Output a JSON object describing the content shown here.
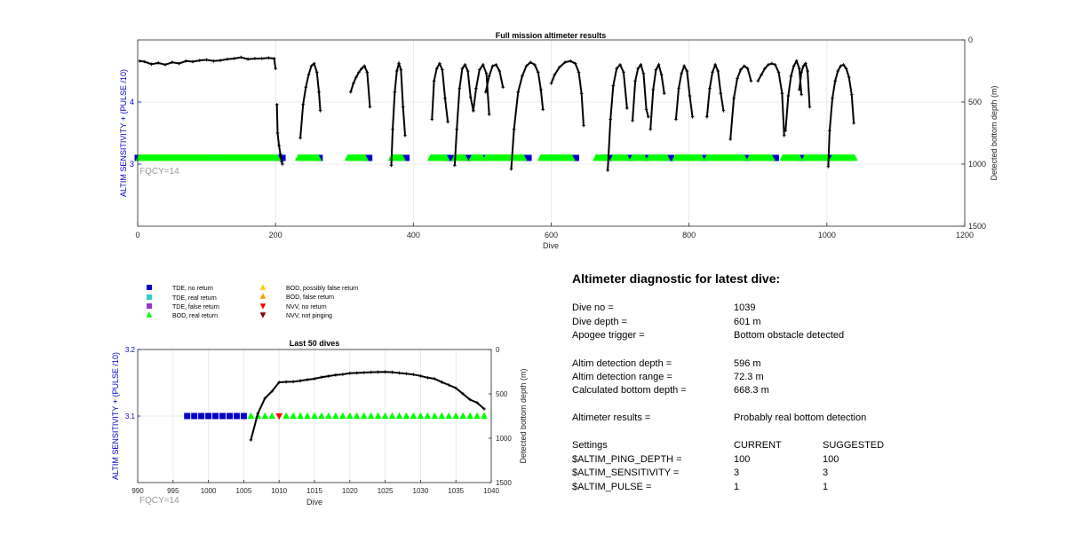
{
  "colors": {
    "tde_no_return": "#0000CC",
    "tde_real_return": "#33CCCC",
    "tde_false_return": "#9933CC",
    "bod_real_return": "#00FF00",
    "bod_possibly_false_return": "#FFCC00",
    "bod_false_return": "#FF9900",
    "nvv_no_return": "#FF0000",
    "nvv_not_pinging": "#800000",
    "depth_line": "#000000",
    "left_axis": "#0000CC",
    "fqcy_text": "#999999"
  },
  "chart_data": [
    {
      "type": "line",
      "title": "Full mission altimeter results",
      "xlabel": "Dive",
      "ylabel_left": "ALTIM SENSITIVITY + (PULSE /10)",
      "ylabel_right": "Detected bottom depth (m)",
      "annotation": "FQCY=14",
      "xlim": [
        0,
        1200
      ],
      "ylim_left": [
        2,
        5
      ],
      "ylim_right": [
        1500,
        0
      ],
      "right_axis_reversed": true,
      "grid": true,
      "x_ticks": [
        "0",
        "200",
        "400",
        "600",
        "800",
        "1000",
        "1200"
      ],
      "y_left_ticks": [
        "3",
        "4"
      ],
      "y_right_ticks": [
        "0",
        "500",
        "1000",
        "1500"
      ],
      "series": [
        {
          "name": "TDE, no return",
          "marker": "square",
          "y_left": 3.1,
          "segments": [
            [
              0,
              2
            ],
            [
              203,
              211
            ],
            [
              258,
              264
            ],
            [
              330,
              337
            ],
            [
              384,
              391
            ],
            [
              448,
              455
            ],
            [
              475,
              482
            ],
            [
              500,
              507
            ],
            [
              560,
              568
            ],
            [
              630,
              637
            ],
            [
              680,
              687
            ],
            [
              710,
              717
            ],
            [
              735,
              741
            ],
            [
              768,
              775
            ],
            [
              818,
              825
            ],
            [
              880,
              887
            ],
            [
              920,
              927
            ],
            [
              960,
              967
            ],
            [
              1000,
              1007
            ]
          ]
        },
        {
          "name": "BOD, real return",
          "marker": "triangle-up",
          "y_left": 3.1,
          "segments": [
            [
              2,
              203
            ],
            [
              233,
              262
            ],
            [
              305,
              330
            ],
            [
              368,
              384
            ],
            [
              425,
              448
            ],
            [
              460,
              475
            ],
            [
              485,
              500
            ],
            [
              505,
              560
            ],
            [
              585,
              630
            ],
            [
              665,
              680
            ],
            [
              690,
              710
            ],
            [
              718,
              735
            ],
            [
              742,
              768
            ],
            [
              780,
              818
            ],
            [
              826,
              880
            ],
            [
              888,
              920
            ],
            [
              936,
              960
            ],
            [
              968,
              1000
            ],
            [
              1008,
              1040
            ]
          ]
        }
      ],
      "depth_segments": [
        {
          "x": [
            3,
            10,
            20,
            30,
            40,
            50,
            60,
            70,
            80,
            90,
            100,
            110,
            120,
            130,
            140,
            150,
            160,
            170,
            180,
            190,
            198,
            200
          ],
          "y": [
            170,
            175,
            195,
            185,
            200,
            180,
            190,
            170,
            175,
            165,
            160,
            170,
            165,
            155,
            150,
            140,
            155,
            150,
            150,
            145,
            150,
            230
          ]
        },
        {
          "x": [
            202,
            203,
            205,
            207,
            209,
            210
          ],
          "y": [
            520,
            750,
            850,
            920,
            980,
            1000
          ]
        },
        {
          "x": [
            236,
            240,
            244,
            248,
            252,
            256,
            260,
            263,
            265
          ],
          "y": [
            790,
            520,
            380,
            280,
            210,
            190,
            260,
            420,
            570
          ]
        },
        {
          "x": [
            309,
            313,
            317,
            321,
            325,
            329,
            333,
            337
          ],
          "y": [
            420,
            350,
            300,
            260,
            230,
            210,
            260,
            540
          ]
        },
        {
          "x": [
            368,
            370,
            373,
            376,
            379,
            382,
            385,
            388
          ],
          "y": [
            1010,
            720,
            420,
            250,
            190,
            240,
            540,
            770
          ]
        },
        {
          "x": [
            427,
            430,
            434,
            438,
            442,
            446,
            450
          ],
          "y": [
            640,
            330,
            230,
            190,
            240,
            470,
            660
          ]
        },
        {
          "x": [
            460,
            463,
            467,
            471,
            475,
            479,
            483,
            487
          ],
          "y": [
            1010,
            720,
            390,
            230,
            200,
            250,
            460,
            570
          ]
        },
        {
          "x": [
            487,
            491,
            496,
            501,
            506,
            510
          ],
          "y": [
            570,
            390,
            240,
            200,
            270,
            600
          ]
        },
        {
          "x": [
            505,
            510,
            515,
            520,
            525,
            530
          ],
          "y": [
            420,
            290,
            210,
            200,
            250,
            380
          ]
        },
        {
          "x": [
            542,
            546,
            552,
            558,
            564,
            570,
            576,
            581,
            585,
            588
          ],
          "y": [
            1040,
            720,
            420,
            290,
            210,
            180,
            200,
            260,
            400,
            560
          ]
        },
        {
          "x": [
            600,
            605,
            612,
            620,
            628,
            635,
            640,
            644,
            647
          ],
          "y": [
            350,
            280,
            220,
            180,
            170,
            190,
            260,
            430,
            690
          ]
        },
        {
          "x": [
            682,
            686,
            690,
            695,
            700,
            705,
            710
          ],
          "y": [
            1050,
            640,
            370,
            230,
            200,
            260,
            550
          ]
        },
        {
          "x": [
            718,
            722,
            726,
            730,
            734,
            738,
            741
          ],
          "y": [
            650,
            330,
            230,
            200,
            270,
            560,
            620
          ]
        },
        {
          "x": [
            744,
            748,
            752,
            756,
            760,
            764
          ],
          "y": [
            720,
            400,
            240,
            200,
            280,
            430
          ]
        },
        {
          "x": [
            781,
            785,
            789,
            793,
            797,
            801,
            805
          ],
          "y": [
            640,
            390,
            270,
            210,
            250,
            450,
            620
          ]
        },
        {
          "x": [
            826,
            830,
            834,
            838,
            842,
            846,
            850
          ],
          "y": [
            620,
            390,
            260,
            200,
            250,
            430,
            570
          ]
        },
        {
          "x": [
            860,
            865,
            870,
            875,
            880,
            885,
            890
          ],
          "y": [
            800,
            470,
            310,
            240,
            210,
            230,
            330
          ]
        },
        {
          "x": [
            900,
            905,
            910,
            915,
            920,
            925,
            930,
            935,
            938
          ],
          "y": [
            330,
            280,
            230,
            200,
            190,
            200,
            260,
            430,
            770
          ]
        },
        {
          "x": [
            940,
            944,
            948,
            952,
            956,
            960,
            963
          ],
          "y": [
            730,
            450,
            290,
            210,
            170,
            230,
            440
          ]
        },
        {
          "x": [
            960,
            963,
            966,
            969,
            972,
            975
          ],
          "y": [
            400,
            260,
            210,
            190,
            250,
            540
          ]
        },
        {
          "x": [
            1002,
            1004,
            1008,
            1012,
            1016,
            1020,
            1024,
            1028,
            1032,
            1036,
            1039
          ],
          "y": [
            1020,
            730,
            470,
            330,
            250,
            210,
            200,
            230,
            300,
            440,
            670
          ]
        }
      ]
    },
    {
      "type": "line",
      "title": "Last 50 dives",
      "xlabel": "Dive",
      "ylabel_left": "ALTIM SENSITIVITY + (PULSE /10)",
      "ylabel_right": "Detected bottom depth (m)",
      "annotation": "FQCY=14",
      "xlim": [
        990,
        1040
      ],
      "ylim_left": [
        3.0,
        3.2
      ],
      "ylim_right": [
        1500,
        0
      ],
      "right_axis_reversed": true,
      "grid": true,
      "x_ticks": [
        "990",
        "995",
        "1000",
        "1005",
        "1010",
        "1015",
        "1020",
        "1025",
        "1030",
        "1035",
        "1040"
      ],
      "y_left_ticks": [
        "3.1",
        "3.2"
      ],
      "y_right_ticks": [
        "0",
        "500",
        "1000",
        "1500"
      ],
      "series": [
        {
          "name": "TDE, no return",
          "marker": "square",
          "x": [
            997,
            998,
            999,
            1000,
            1001,
            1002,
            1003,
            1004,
            1005
          ],
          "y": [
            3.1,
            3.1,
            3.1,
            3.1,
            3.1,
            3.1,
            3.1,
            3.1,
            3.1
          ]
        },
        {
          "name": "BOD, real return",
          "marker": "triangle-up",
          "x": [
            1006,
            1007,
            1008,
            1009,
            1011,
            1012,
            1013,
            1014,
            1015,
            1016,
            1017,
            1018,
            1019,
            1020,
            1021,
            1022,
            1023,
            1024,
            1025,
            1026,
            1027,
            1028,
            1029,
            1030,
            1031,
            1032,
            1033,
            1034,
            1035,
            1036,
            1037,
            1038,
            1039
          ],
          "y": [
            3.1,
            3.1,
            3.1,
            3.1,
            3.1,
            3.1,
            3.1,
            3.1,
            3.1,
            3.1,
            3.1,
            3.1,
            3.1,
            3.1,
            3.1,
            3.1,
            3.1,
            3.1,
            3.1,
            3.1,
            3.1,
            3.1,
            3.1,
            3.1,
            3.1,
            3.1,
            3.1,
            3.1,
            3.1,
            3.1,
            3.1,
            3.1,
            3.1
          ]
        },
        {
          "name": "NVV, no return",
          "marker": "triangle-down",
          "x": [
            1010
          ],
          "y": [
            3.1
          ]
        },
        {
          "name": "Detected bottom depth",
          "marker": "plus",
          "axis": "right",
          "x": [
            1006,
            1007,
            1008,
            1009,
            1010,
            1011,
            1012,
            1013,
            1014,
            1015,
            1016,
            1017,
            1018,
            1019,
            1020,
            1021,
            1022,
            1023,
            1024,
            1025,
            1026,
            1027,
            1028,
            1029,
            1030,
            1031,
            1032,
            1033,
            1034,
            1035,
            1036,
            1037,
            1038,
            1039
          ],
          "y": [
            1020,
            720,
            550,
            470,
            370,
            365,
            362,
            352,
            340,
            330,
            312,
            300,
            288,
            280,
            268,
            264,
            260,
            256,
            254,
            252,
            256,
            265,
            272,
            282,
            298,
            318,
            330,
            368,
            400,
            435,
            500,
            565,
            600,
            670
          ]
        }
      ]
    }
  ],
  "legend": {
    "items": [
      {
        "label": "TDE, no return",
        "marker": "square",
        "color": "#0000CC"
      },
      {
        "label": "TDE, real return",
        "marker": "square",
        "color": "#33CCCC"
      },
      {
        "label": "TDE, false return",
        "marker": "square",
        "color": "#9933CC"
      },
      {
        "label": "BOD, real return",
        "marker": "triangle-up",
        "color": "#00FF00"
      },
      {
        "label": "BOD, possibly false return",
        "marker": "triangle-up",
        "color": "#FFCC00"
      },
      {
        "label": "BOD, false return",
        "marker": "triangle-up",
        "color": "#FF9900"
      },
      {
        "label": "NVV, no return",
        "marker": "triangle-down",
        "color": "#FF0000"
      },
      {
        "label": "NVV, not pinging",
        "marker": "triangle-down",
        "color": "#800000"
      }
    ]
  },
  "diagnostic": {
    "title": "Altimeter diagnostic for latest dive:",
    "dive_no_label": "Dive no =",
    "dive_no": "1039",
    "dive_depth_label": "Dive depth =",
    "dive_depth": "601 m",
    "apogee_trigger_label": "Apogee trigger =",
    "apogee_trigger": "Bottom obstacle detected",
    "altim_detection_depth_label": "Altim detection depth =",
    "altim_detection_depth": "596 m",
    "altim_detection_range_label": "Altim detection range =",
    "altim_detection_range": "72.3 m",
    "calculated_bottom_depth_label": "Calculated bottom depth =",
    "calculated_bottom_depth": "668.3 m",
    "altimeter_results_label": "Altimeter results =",
    "altimeter_results": "Probably real bottom detection",
    "settings_label": "Settings",
    "current_label": "CURRENT",
    "suggested_label": "SUGGESTED",
    "settings": [
      {
        "name": "$ALTIM_PING_DEPTH =",
        "current": "100",
        "suggested": "100"
      },
      {
        "name": "$ALTIM_SENSITIVITY =",
        "current": "3",
        "suggested": "3"
      },
      {
        "name": "$ALTIM_PULSE =",
        "current": "1",
        "suggested": "1"
      }
    ]
  }
}
